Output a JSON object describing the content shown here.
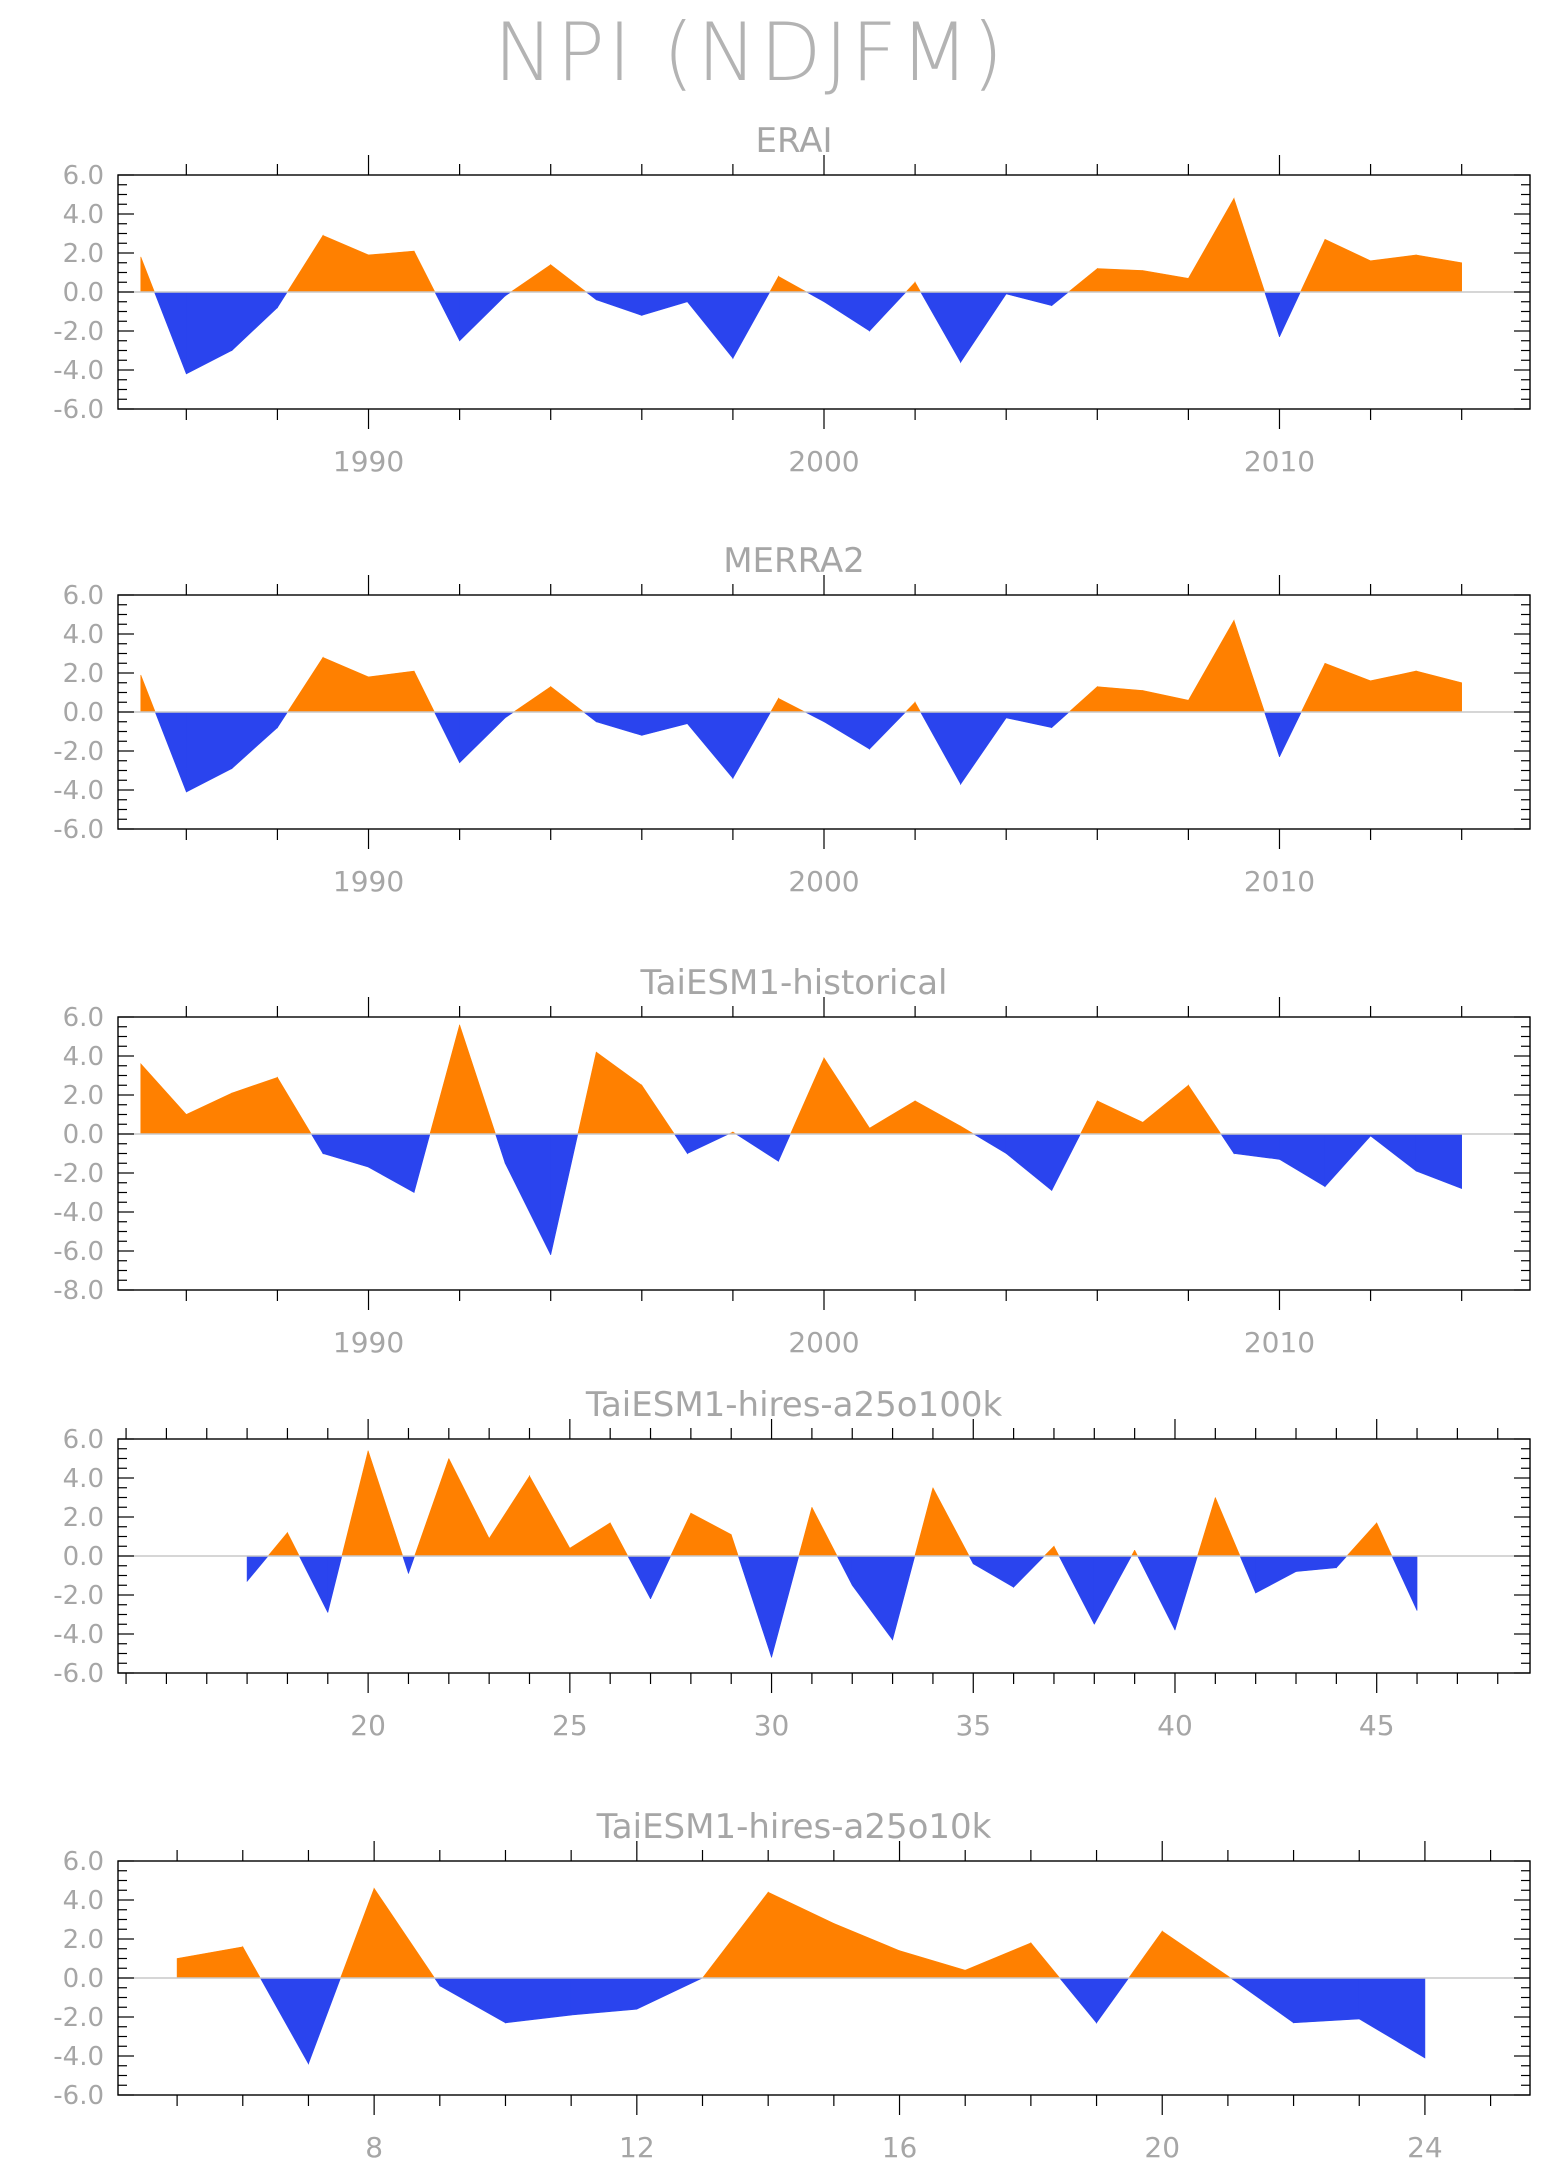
{
  "title": "NPI (NDJFM)",
  "colors": {
    "positive": "#ff8000",
    "negative": "#2a44ee",
    "zero_line": "#c8c8c8",
    "text": "#a6a6a6"
  },
  "chart_data": [
    {
      "type": "area",
      "title": "ERAI",
      "xlabel": "",
      "ylabel": "",
      "xlim": [
        1984.5,
        2015.5
      ],
      "ylim": [
        -6,
        6
      ],
      "yticks": [
        "6.0",
        "4.0",
        "2.0",
        "0.0",
        "-2.0",
        "-4.0",
        "-6.0"
      ],
      "xticks": [
        1990,
        2000,
        2010
      ],
      "x": [
        1985,
        1986,
        1987,
        1988,
        1989,
        1990,
        1991,
        1992,
        1993,
        1994,
        1995,
        1996,
        1997,
        1998,
        1999,
        2000,
        2001,
        2002,
        2003,
        2004,
        2005,
        2006,
        2007,
        2008,
        2009,
        2010,
        2011,
        2012,
        2013,
        2014
      ],
      "values": [
        1.8,
        -4.2,
        -3.0,
        -0.8,
        2.9,
        1.9,
        2.1,
        -2.5,
        -0.2,
        1.4,
        -0.4,
        -1.2,
        -0.5,
        -3.4,
        0.8,
        -0.5,
        -2.0,
        0.5,
        -3.6,
        -0.1,
        -0.7,
        1.2,
        1.1,
        0.7,
        4.8,
        -2.3,
        2.7,
        1.6,
        1.9,
        1.5
      ]
    },
    {
      "type": "area",
      "title": "MERRA2",
      "xlabel": "",
      "ylabel": "",
      "xlim": [
        1984.5,
        2015.5
      ],
      "ylim": [
        -6,
        6
      ],
      "yticks": [
        "6.0",
        "4.0",
        "2.0",
        "0.0",
        "-2.0",
        "-4.0",
        "-6.0"
      ],
      "xticks": [
        1990,
        2000,
        2010
      ],
      "x": [
        1985,
        1986,
        1987,
        1988,
        1989,
        1990,
        1991,
        1992,
        1993,
        1994,
        1995,
        1996,
        1997,
        1998,
        1999,
        2000,
        2001,
        2002,
        2003,
        2004,
        2005,
        2006,
        2007,
        2008,
        2009,
        2010,
        2011,
        2012,
        2013,
        2014
      ],
      "values": [
        1.9,
        -4.1,
        -2.9,
        -0.8,
        2.8,
        1.8,
        2.1,
        -2.6,
        -0.3,
        1.3,
        -0.5,
        -1.2,
        -0.6,
        -3.4,
        0.7,
        -0.5,
        -1.9,
        0.5,
        -3.7,
        -0.3,
        -0.8,
        1.3,
        1.1,
        0.6,
        4.7,
        -2.3,
        2.5,
        1.6,
        2.1,
        1.5
      ]
    },
    {
      "type": "area",
      "title": "TaiESM1-historical",
      "xlabel": "",
      "ylabel": "",
      "xlim": [
        1984.5,
        2015.5
      ],
      "ylim": [
        -8,
        6
      ],
      "yticks": [
        "6.0",
        "4.0",
        "2.0",
        "0.0",
        "-2.0",
        "-4.0",
        "-6.0",
        "-8.0"
      ],
      "xticks": [
        1990,
        2000,
        2010
      ],
      "x": [
        1985,
        1986,
        1987,
        1988,
        1989,
        1990,
        1991,
        1992,
        1993,
        1994,
        1995,
        1996,
        1997,
        1998,
        1999,
        2000,
        2001,
        2002,
        2003,
        2004,
        2005,
        2006,
        2007,
        2008,
        2009,
        2010,
        2011,
        2012,
        2013,
        2014
      ],
      "values": [
        3.6,
        1.0,
        2.1,
        2.9,
        -1.0,
        -1.7,
        -3.0,
        5.6,
        -1.5,
        -6.2,
        4.2,
        2.5,
        -1.0,
        0.1,
        -1.4,
        3.9,
        0.3,
        1.7,
        0.4,
        -1.0,
        -2.9,
        1.7,
        0.6,
        2.5,
        -1.0,
        -1.3,
        -2.7,
        -0.1,
        -1.9,
        -2.8
      ]
    },
    {
      "type": "area",
      "title": "TaiESM1-hires-a25o100k",
      "xlabel": "",
      "ylabel": "",
      "xlim": [
        13.8,
        48.8
      ],
      "ylim": [
        -6,
        6
      ],
      "yticks": [
        "6.0",
        "4.0",
        "2.0",
        "0.0",
        "-2.0",
        "-4.0",
        "-6.0"
      ],
      "xticks": [
        20,
        25,
        30,
        35,
        40,
        45
      ],
      "x": [
        17,
        18,
        19,
        20,
        21,
        22,
        23,
        24,
        25,
        26,
        27,
        28,
        29,
        30,
        31,
        32,
        33,
        34,
        35,
        36,
        37,
        38,
        39,
        40,
        41,
        42,
        43,
        44,
        45,
        46
      ],
      "values": [
        -1.3,
        1.2,
        -2.9,
        5.4,
        -0.9,
        5.0,
        0.9,
        4.1,
        0.4,
        1.7,
        -2.2,
        2.2,
        1.1,
        -5.2,
        2.5,
        -1.5,
        -4.3,
        3.5,
        -0.4,
        -1.6,
        0.5,
        -3.5,
        0.3,
        -3.8,
        3.0,
        -1.9,
        -0.8,
        -0.6,
        1.7,
        -2.8
      ]
    },
    {
      "type": "area",
      "title": "TaiESM1-hires-a25o10k",
      "xlabel": "",
      "ylabel": "",
      "xlim": [
        4.1,
        25.6
      ],
      "ylim": [
        -6,
        6
      ],
      "yticks": [
        "6.0",
        "4.0",
        "2.0",
        "0.0",
        "-2.0",
        "-4.0",
        "-6.0"
      ],
      "xticks": [
        8,
        12,
        16,
        20,
        24
      ],
      "x": [
        5,
        6,
        7,
        8,
        9,
        10,
        11,
        12,
        13,
        14,
        15,
        16,
        17,
        18,
        19,
        20,
        21,
        22,
        23,
        24
      ],
      "values": [
        1.0,
        1.6,
        -4.4,
        4.6,
        -0.4,
        -2.3,
        -1.9,
        -1.6,
        0.0,
        4.4,
        2.8,
        1.4,
        0.4,
        1.8,
        -2.3,
        2.4,
        0.1,
        -2.3,
        -2.1,
        -4.1
      ]
    }
  ]
}
